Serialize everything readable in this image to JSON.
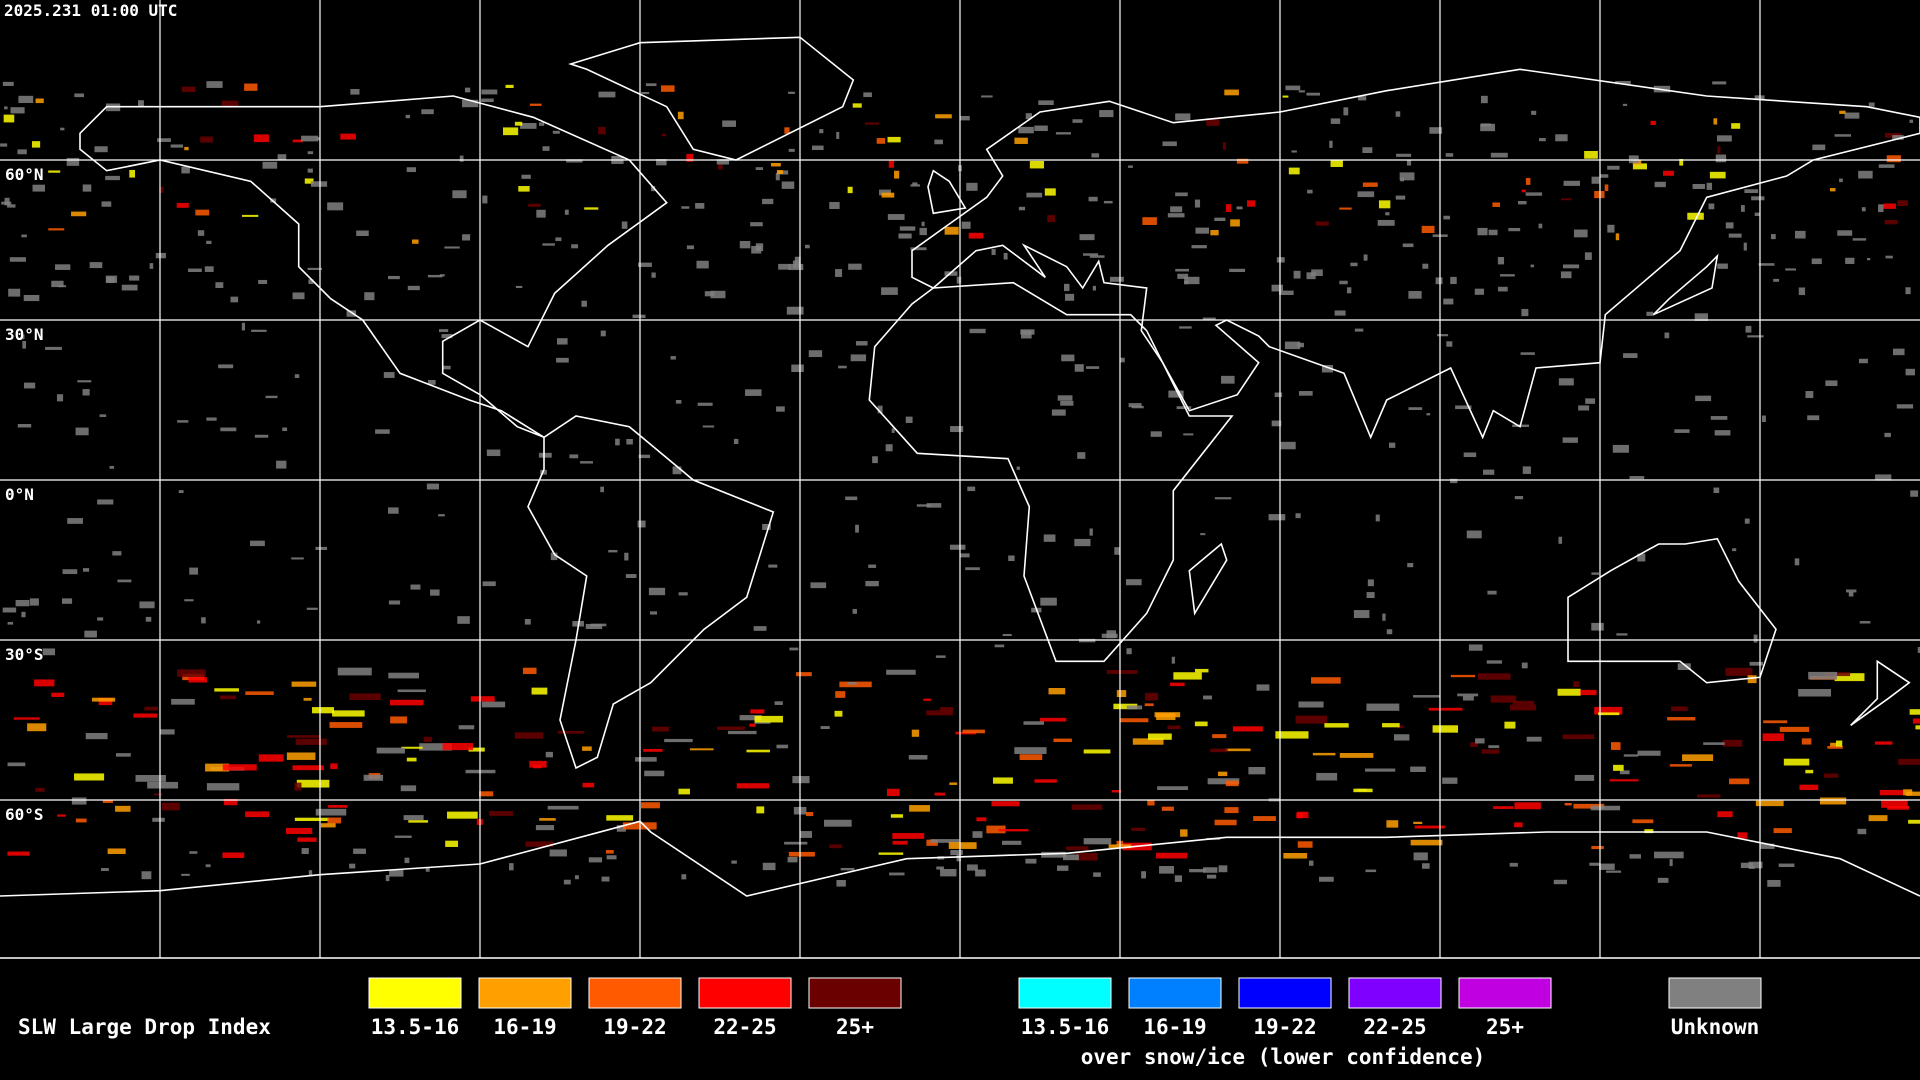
{
  "header": {
    "timestamp": "2025.231 01:00 UTC"
  },
  "map": {
    "latitude_labels": [
      "60°N",
      "30°N",
      "0°N",
      "30°S",
      "60°S"
    ]
  },
  "legend": {
    "title": "SLW Large Drop Index",
    "groups": [
      {
        "items": [
          {
            "label": "13.5-16",
            "color": "#ffff00"
          },
          {
            "label": "16-19",
            "color": "#ffa000"
          },
          {
            "label": "19-22",
            "color": "#ff5a00"
          },
          {
            "label": "22-25",
            "color": "#ff0000"
          },
          {
            "label": "25+",
            "color": "#6b0000"
          }
        ]
      },
      {
        "items": [
          {
            "label": "13.5-16",
            "color": "#00ffff"
          },
          {
            "label": "16-19",
            "color": "#0080ff"
          },
          {
            "label": "19-22",
            "color": "#0000ff"
          },
          {
            "label": "22-25",
            "color": "#8000ff"
          },
          {
            "label": "25+",
            "color": "#c000e0"
          }
        ],
        "caption": "over snow/ice (lower confidence)"
      }
    ],
    "unknown": {
      "label": "Unknown",
      "color": "#808080"
    }
  }
}
